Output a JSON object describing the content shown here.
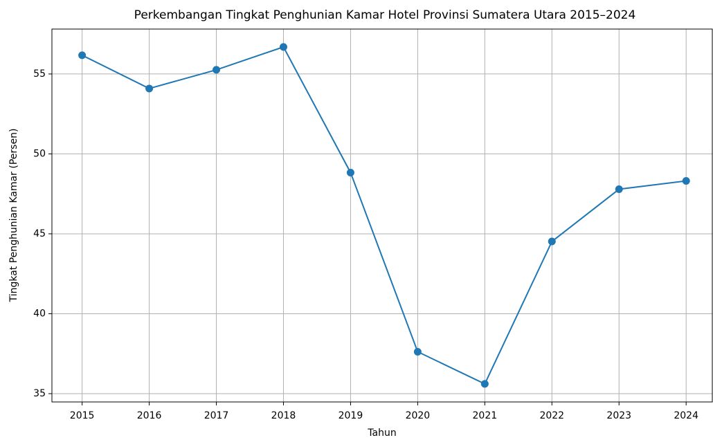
{
  "chart_data": {
    "type": "line",
    "title": "Perkembangan Tingkat Penghunian Kamar Hotel Provinsi Sumatera Utara 2015–2024",
    "x_label": "Tahun",
    "y_label": "Tingkat Penghunian Kamar (Persen)",
    "x": [
      2015,
      2016,
      2017,
      2018,
      2019,
      2020,
      2021,
      2022,
      2023,
      2024
    ],
    "series": [
      {
        "name": "Tingkat Penghunian Kamar",
        "color": "#1f77b4",
        "values": [
          56.17,
          54.09,
          55.26,
          56.69,
          48.83,
          37.62,
          35.61,
          44.52,
          47.79,
          48.31
        ]
      }
    ],
    "xlim": [
      2014.55,
      2024.39
    ],
    "xticks": [
      2015,
      2016,
      2017,
      2018,
      2019,
      2020,
      2021,
      2022,
      2023,
      2024
    ],
    "ylim": [
      34.48,
      57.81
    ],
    "yticks": [
      35,
      40,
      45,
      50,
      55
    ],
    "grid": true
  }
}
